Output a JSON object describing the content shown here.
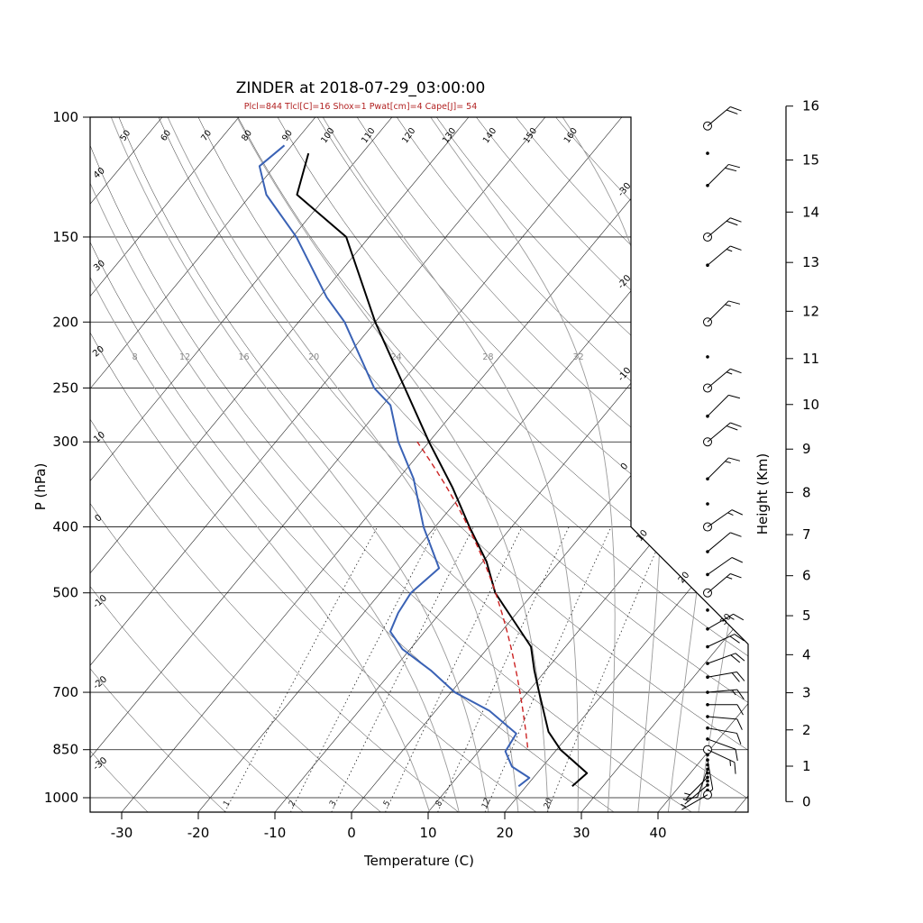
{
  "title": "ZINDER at 2018-07-29_03:00:00",
  "params_line": "Plcl=844 Tlcl[C]=16 Shox=1 Pwat[cm]=4 Cape[J]= 54",
  "colors": {
    "temperature_line": "#000000",
    "dewpoint_line": "#3a62b5",
    "parcel_line": "#cc2222",
    "params_text": "#b22222",
    "moist_adiabat": "#9a9a9a",
    "moist_label": "#888888",
    "grid_line": "#111111",
    "mixing_ratio_line": "#222222"
  },
  "axes": {
    "pressure_label": "P (hPa)",
    "temperature_label": "Temperature (C)",
    "height_label": "Height (Km)",
    "pressure_ticks": [
      100,
      150,
      200,
      250,
      300,
      400,
      500,
      700,
      850,
      1000
    ],
    "temperature_ticks": [
      -30,
      -20,
      -10,
      0,
      10,
      20,
      30,
      40
    ],
    "height_ticks": [
      0,
      1,
      2,
      3,
      4,
      5,
      6,
      7,
      8,
      9,
      10,
      11,
      12,
      13,
      14,
      15,
      16
    ]
  },
  "chart_data": {
    "type": "skewt-log-p-sounding",
    "station": "ZINDER",
    "time": "2018-07-29_03:00:00",
    "indices": {
      "Plcl": 844,
      "Tlcl_C": 16,
      "Shox": 1,
      "Pwat_cm": 4,
      "Cape_J": 54
    },
    "temperature_profile": [
      {
        "p": 962,
        "t": 26.0
      },
      {
        "p": 920,
        "t": 26.5
      },
      {
        "p": 850,
        "t": 20.5
      },
      {
        "p": 800,
        "t": 17.0
      },
      {
        "p": 700,
        "t": 11.5
      },
      {
        "p": 650,
        "t": 8.5
      },
      {
        "p": 600,
        "t": 5.5
      },
      {
        "p": 550,
        "t": 0.5
      },
      {
        "p": 500,
        "t": -5.0
      },
      {
        "p": 450,
        "t": -9.5
      },
      {
        "p": 400,
        "t": -15.5
      },
      {
        "p": 350,
        "t": -22.0
      },
      {
        "p": 300,
        "t": -30.0
      },
      {
        "p": 250,
        "t": -39.0
      },
      {
        "p": 200,
        "t": -50.0
      },
      {
        "p": 150,
        "t": -63.0
      },
      {
        "p": 130,
        "t": -74.0
      },
      {
        "p": 113,
        "t": -77.0
      }
    ],
    "dewpoint_profile": [
      {
        "p": 962,
        "t": 19.0
      },
      {
        "p": 935,
        "t": 19.5
      },
      {
        "p": 900,
        "t": 16.0
      },
      {
        "p": 855,
        "t": 13.5
      },
      {
        "p": 805,
        "t": 13.0
      },
      {
        "p": 745,
        "t": 7.0
      },
      {
        "p": 700,
        "t": 0.5
      },
      {
        "p": 650,
        "t": -5.0
      },
      {
        "p": 605,
        "t": -11.0
      },
      {
        "p": 570,
        "t": -14.5
      },
      {
        "p": 535,
        "t": -15.5
      },
      {
        "p": 500,
        "t": -16.0
      },
      {
        "p": 460,
        "t": -15.0
      },
      {
        "p": 400,
        "t": -21.5
      },
      {
        "p": 340,
        "t": -28.0
      },
      {
        "p": 300,
        "t": -34.0
      },
      {
        "p": 265,
        "t": -39.0
      },
      {
        "p": 250,
        "t": -43.0
      },
      {
        "p": 200,
        "t": -54.0
      },
      {
        "p": 184,
        "t": -59.0
      },
      {
        "p": 150,
        "t": -69.5
      },
      {
        "p": 130,
        "t": -78.0
      },
      {
        "p": 118,
        "t": -82.0
      },
      {
        "p": 110,
        "t": -81.0
      }
    ],
    "parcel": {
      "lcl_p": 844,
      "lcl_t": 16,
      "top_p": 300
    },
    "winds": [
      {
        "p": 103,
        "spd": 20,
        "dir": 50,
        "mark": "circle"
      },
      {
        "p": 113,
        "spd": 0,
        "dir": 0,
        "mark": "dot"
      },
      {
        "p": 126,
        "spd": 20,
        "dir": 45,
        "mark": "dot"
      },
      {
        "p": 150,
        "spd": 20,
        "dir": 50,
        "mark": "circle"
      },
      {
        "p": 165,
        "spd": 15,
        "dir": 50,
        "mark": "dot"
      },
      {
        "p": 200,
        "spd": 15,
        "dir": 45,
        "mark": "circle"
      },
      {
        "p": 225,
        "spd": 0,
        "dir": 0,
        "mark": "dot"
      },
      {
        "p": 250,
        "spd": 15,
        "dir": 50,
        "mark": "circle"
      },
      {
        "p": 275,
        "spd": 10,
        "dir": 45,
        "mark": "dot"
      },
      {
        "p": 300,
        "spd": 20,
        "dir": 50,
        "mark": "circle"
      },
      {
        "p": 340,
        "spd": 15,
        "dir": 45,
        "mark": "dot"
      },
      {
        "p": 370,
        "spd": 0,
        "dir": 0,
        "mark": "dot"
      },
      {
        "p": 400,
        "spd": 15,
        "dir": 55,
        "mark": "circle"
      },
      {
        "p": 435,
        "spd": 10,
        "dir": 50,
        "mark": "dot"
      },
      {
        "p": 470,
        "spd": 10,
        "dir": 55,
        "mark": "dot"
      },
      {
        "p": 500,
        "spd": 15,
        "dir": 50,
        "mark": "circle"
      },
      {
        "p": 530,
        "spd": 0,
        "dir": 0,
        "mark": "dot"
      },
      {
        "p": 565,
        "spd": 15,
        "dir": 60,
        "mark": "dot"
      },
      {
        "p": 600,
        "spd": 20,
        "dir": 65,
        "mark": "dot"
      },
      {
        "p": 635,
        "spd": 20,
        "dir": 70,
        "mark": "dot"
      },
      {
        "p": 665,
        "spd": 20,
        "dir": 80,
        "mark": "dot"
      },
      {
        "p": 700,
        "spd": 15,
        "dir": 85,
        "mark": "dot"
      },
      {
        "p": 730,
        "spd": 10,
        "dir": 90,
        "mark": "dot"
      },
      {
        "p": 760,
        "spd": 10,
        "dir": 95,
        "mark": "dot"
      },
      {
        "p": 790,
        "spd": 10,
        "dir": 100,
        "mark": "dot"
      },
      {
        "p": 820,
        "spd": 10,
        "dir": 110,
        "mark": "dot"
      },
      {
        "p": 850,
        "spd": 15,
        "dir": 115,
        "mark": "circle"
      },
      {
        "p": 865,
        "spd": 0,
        "dir": 0,
        "mark": "dot"
      },
      {
        "p": 880,
        "spd": 10,
        "dir": 170,
        "mark": "dot"
      },
      {
        "p": 895,
        "spd": 0,
        "dir": 0,
        "mark": "dot"
      },
      {
        "p": 908,
        "spd": 10,
        "dir": 200,
        "mark": "dot"
      },
      {
        "p": 920,
        "spd": 0,
        "dir": 0,
        "mark": "dot"
      },
      {
        "p": 933,
        "spd": 5,
        "dir": 225,
        "mark": "dot"
      },
      {
        "p": 945,
        "spd": 0,
        "dir": 0,
        "mark": "dot"
      },
      {
        "p": 958,
        "spd": 5,
        "dir": 230,
        "mark": "dot"
      },
      {
        "p": 975,
        "spd": 0,
        "dir": 0,
        "mark": "dot"
      },
      {
        "p": 990,
        "spd": 5,
        "dir": 240,
        "mark": "circle"
      }
    ],
    "grid": {
      "isotherms": {
        "min": -110,
        "max": 50,
        "step": 10
      },
      "dry_adiabats": {
        "min": -30,
        "max": 160,
        "step": 10
      },
      "dry_adiabat_top_labels": [
        50,
        60,
        70,
        80,
        90,
        100,
        110,
        120,
        130,
        140,
        150,
        160
      ],
      "dry_adiabat_left_labels": [
        40,
        30,
        20,
        10,
        0,
        -10,
        -20,
        -30
      ],
      "moist_adiabats": [
        8,
        12,
        16,
        20,
        24,
        28,
        32,
        36,
        40,
        44
      ],
      "moist_adiabat_labels": [
        8,
        12,
        16,
        20,
        24,
        28,
        32
      ],
      "mixing_ratios": [
        1,
        2,
        3,
        5,
        8,
        12,
        20
      ],
      "isotherm_right_labels": [
        -30,
        -20,
        -10,
        0
      ],
      "isotherm_diag_labels": [
        10,
        20,
        30
      ]
    }
  }
}
